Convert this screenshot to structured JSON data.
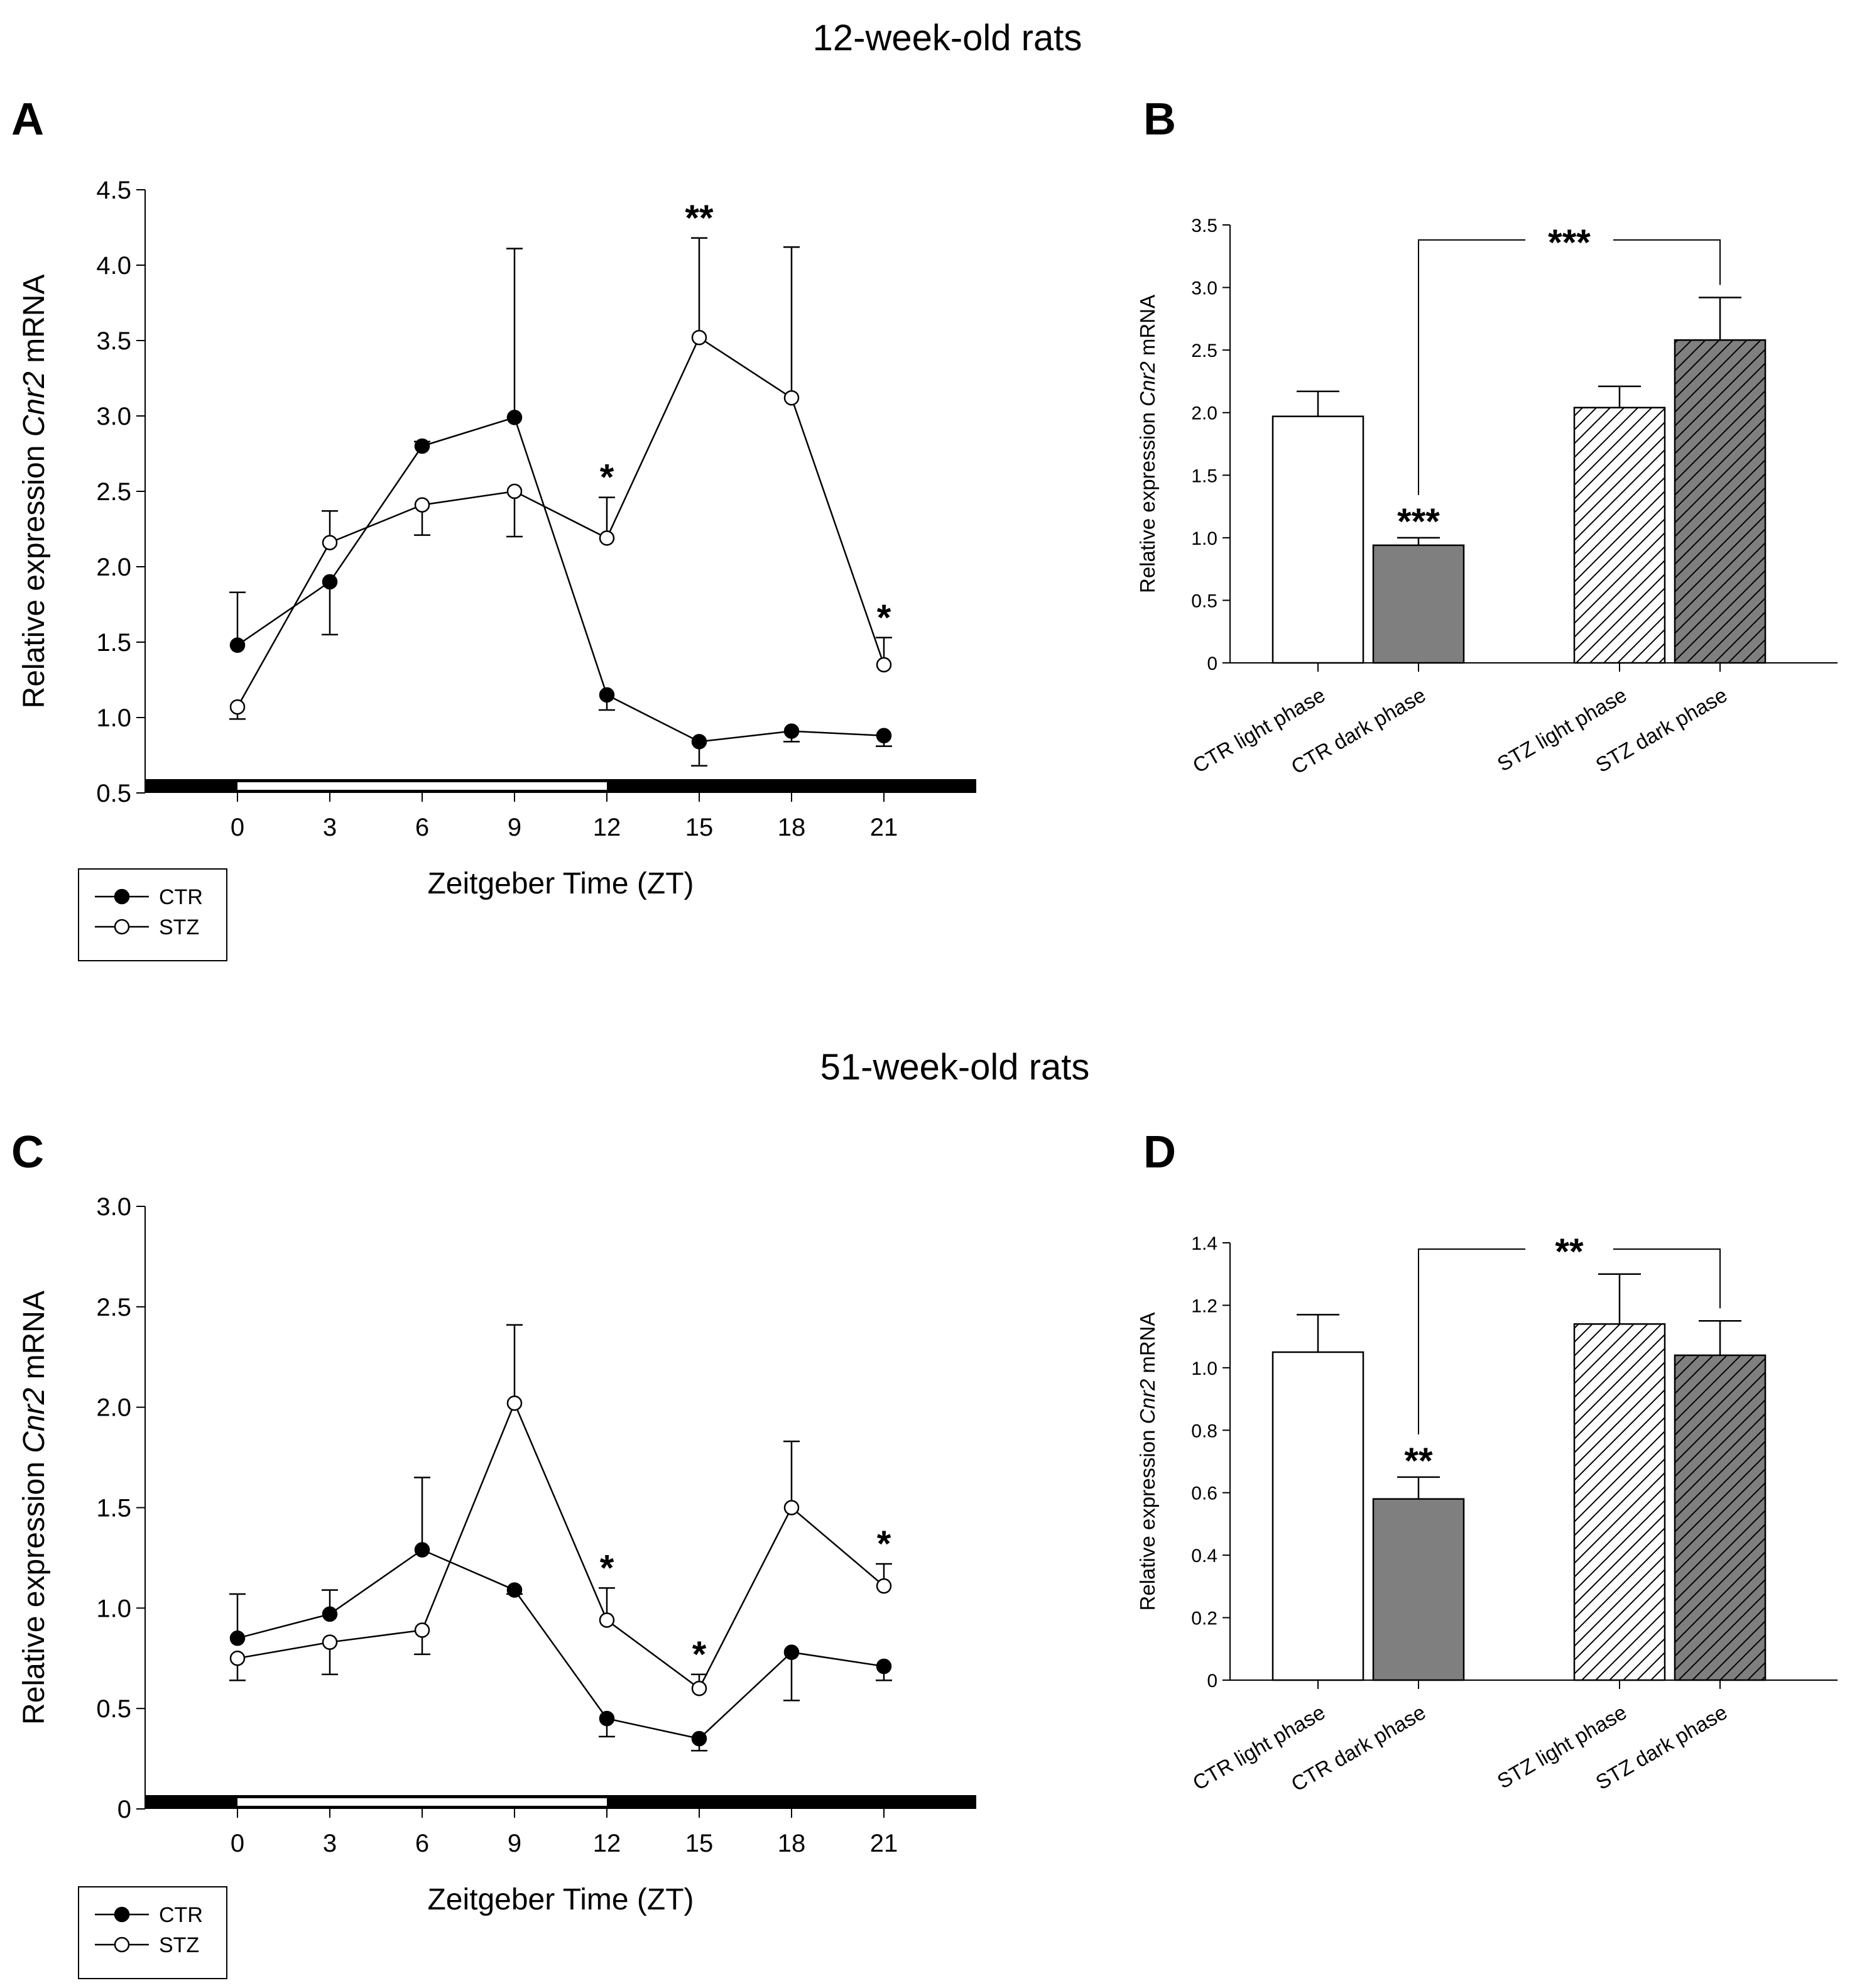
{
  "chart_data": [
    {
      "id": "A",
      "type": "line",
      "panel_label": "A",
      "section_title": "12-week-old rats",
      "xlabel": "Zeitgeber Time (ZT)",
      "ylabel_pre": "Relative expression ",
      "ylabel_gene": "Cnr2",
      "ylabel_post": " mRNA",
      "x": [
        0,
        3,
        6,
        9,
        12,
        15,
        18,
        21
      ],
      "xlim": [
        -3,
        24
      ],
      "ylim": [
        0.5,
        4.5
      ],
      "yticks": [
        0.5,
        1.0,
        1.5,
        2.0,
        2.5,
        3.0,
        3.5,
        4.0,
        4.5
      ],
      "ytick_labels": [
        "0.5",
        "1.0",
        "1.5",
        "2.0",
        "2.5",
        "3.0",
        "3.5",
        "4.0",
        "4.5"
      ],
      "light_phase": [
        0,
        12
      ],
      "series": [
        {
          "name": "CTR",
          "marker": "filled",
          "values": [
            1.48,
            1.9,
            2.8,
            2.99,
            1.15,
            0.84,
            0.91,
            0.88
          ],
          "err": [
            0.35,
            0.35,
            0.03,
            1.12,
            0.1,
            0.16,
            0.07,
            0.07
          ]
        },
        {
          "name": "STZ",
          "marker": "open",
          "values": [
            1.07,
            2.16,
            2.41,
            2.5,
            2.19,
            3.52,
            3.12,
            1.35
          ],
          "err": [
            0.08,
            0.21,
            0.2,
            0.3,
            0.27,
            0.66,
            1.0,
            0.18
          ]
        }
      ],
      "stars": [
        {
          "x": 12,
          "text": "*",
          "y": 2.46
        },
        {
          "x": 15,
          "text": "**",
          "y": 4.18
        },
        {
          "x": 21,
          "text": "*",
          "y": 1.53
        }
      ]
    },
    {
      "id": "B",
      "type": "bar",
      "panel_label": "B",
      "ylabel_pre": "Relative expression ",
      "ylabel_gene": "Cnr2",
      "ylabel_post": " mRNA",
      "categories": [
        "CTR light phase",
        "CTR dark phase",
        "STZ light phase",
        "STZ dark phase"
      ],
      "values": [
        1.97,
        0.94,
        2.04,
        2.58
      ],
      "err": [
        0.2,
        0.06,
        0.17,
        0.34
      ],
      "fills": [
        "white",
        "gray",
        "hatch-white",
        "hatch-gray"
      ],
      "ylim": [
        0,
        3.5
      ],
      "yticks": [
        0,
        0.5,
        1.0,
        1.5,
        2.0,
        2.5,
        3.0,
        3.5
      ],
      "ytick_labels": [
        "0",
        "0.5",
        "1.0",
        "1.5",
        "2.0",
        "2.5",
        "3.0",
        "3.5"
      ],
      "bar_star": {
        "index": 1,
        "text": "***"
      },
      "bracket": {
        "from": 1,
        "to": 3,
        "text": "***",
        "y": 3.38
      }
    },
    {
      "id": "C",
      "type": "line",
      "panel_label": "C",
      "section_title": "51-week-old rats",
      "xlabel": "Zeitgeber Time (ZT)",
      "ylabel_pre": "Relative expression ",
      "ylabel_gene": "Cnr2",
      "ylabel_post": " mRNA",
      "x": [
        0,
        3,
        6,
        9,
        12,
        15,
        18,
        21
      ],
      "xlim": [
        -3,
        24
      ],
      "ylim": [
        0,
        3.0
      ],
      "yticks": [
        0,
        0.5,
        1.0,
        1.5,
        2.0,
        2.5,
        3.0
      ],
      "ytick_labels": [
        "0",
        "0.5",
        "1.0",
        "1.5",
        "2.0",
        "2.5",
        "3.0"
      ],
      "light_phase": [
        0,
        12
      ],
      "series": [
        {
          "name": "CTR",
          "marker": "filled",
          "values": [
            0.85,
            0.97,
            1.29,
            1.09,
            0.45,
            0.35,
            0.78,
            0.71
          ],
          "err": [
            0.22,
            0.12,
            0.36,
            0.02,
            0.09,
            0.06,
            0.24,
            0.07
          ]
        },
        {
          "name": "STZ",
          "marker": "open",
          "values": [
            0.75,
            0.83,
            0.89,
            2.02,
            0.94,
            0.6,
            1.5,
            1.11
          ],
          "err": [
            0.11,
            0.16,
            0.12,
            0.39,
            0.16,
            0.07,
            0.33,
            0.11
          ]
        }
      ],
      "stars": [
        {
          "x": 12,
          "text": "*",
          "y": 1.1
        },
        {
          "x": 15,
          "text": "*",
          "y": 0.67
        },
        {
          "x": 21,
          "text": "*",
          "y": 1.22
        }
      ]
    },
    {
      "id": "D",
      "type": "bar",
      "panel_label": "D",
      "ylabel_pre": "Relative expression ",
      "ylabel_gene": "Cnr2",
      "ylabel_post": " mRNA",
      "categories": [
        "CTR light phase",
        "CTR dark phase",
        "STZ light phase",
        "STZ dark phase"
      ],
      "values": [
        1.05,
        0.58,
        1.14,
        1.04
      ],
      "err": [
        0.12,
        0.07,
        0.16,
        0.11
      ],
      "fills": [
        "white",
        "gray",
        "hatch-white",
        "hatch-gray"
      ],
      "ylim": [
        0,
        1.4
      ],
      "yticks": [
        0,
        0.2,
        0.4,
        0.6,
        0.8,
        1.0,
        1.2,
        1.4
      ],
      "ytick_labels": [
        "0",
        "0.2",
        "0.4",
        "0.6",
        "0.8",
        "1.0",
        "1.2",
        "1.4"
      ],
      "bar_star": {
        "index": 1,
        "text": "**"
      },
      "bracket": {
        "from": 1,
        "to": 3,
        "text": "**",
        "y": 1.38
      }
    }
  ]
}
